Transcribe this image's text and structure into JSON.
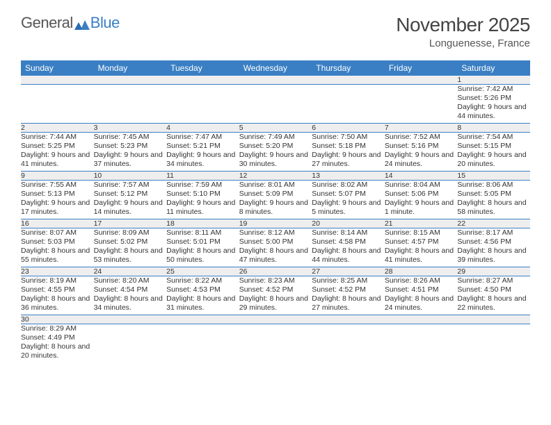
{
  "logo": {
    "general": "General",
    "blue": "Blue"
  },
  "title": "November 2025",
  "location": "Longuenesse, France",
  "colors": {
    "header_bg": "#3a7fc4",
    "day_bg": "#eeeeee",
    "text": "#333333"
  },
  "weekdays": [
    "Sunday",
    "Monday",
    "Tuesday",
    "Wednesday",
    "Thursday",
    "Friday",
    "Saturday"
  ],
  "weeks": [
    {
      "nums": [
        "",
        "",
        "",
        "",
        "",
        "",
        "1"
      ],
      "cells": [
        {
          "sunrise": "",
          "sunset": "",
          "daylight": ""
        },
        {
          "sunrise": "",
          "sunset": "",
          "daylight": ""
        },
        {
          "sunrise": "",
          "sunset": "",
          "daylight": ""
        },
        {
          "sunrise": "",
          "sunset": "",
          "daylight": ""
        },
        {
          "sunrise": "",
          "sunset": "",
          "daylight": ""
        },
        {
          "sunrise": "",
          "sunset": "",
          "daylight": ""
        },
        {
          "sunrise": "Sunrise: 7:42 AM",
          "sunset": "Sunset: 5:26 PM",
          "daylight": "Daylight: 9 hours and 44 minutes."
        }
      ]
    },
    {
      "nums": [
        "2",
        "3",
        "4",
        "5",
        "6",
        "7",
        "8"
      ],
      "cells": [
        {
          "sunrise": "Sunrise: 7:44 AM",
          "sunset": "Sunset: 5:25 PM",
          "daylight": "Daylight: 9 hours and 41 minutes."
        },
        {
          "sunrise": "Sunrise: 7:45 AM",
          "sunset": "Sunset: 5:23 PM",
          "daylight": "Daylight: 9 hours and 37 minutes."
        },
        {
          "sunrise": "Sunrise: 7:47 AM",
          "sunset": "Sunset: 5:21 PM",
          "daylight": "Daylight: 9 hours and 34 minutes."
        },
        {
          "sunrise": "Sunrise: 7:49 AM",
          "sunset": "Sunset: 5:20 PM",
          "daylight": "Daylight: 9 hours and 30 minutes."
        },
        {
          "sunrise": "Sunrise: 7:50 AM",
          "sunset": "Sunset: 5:18 PM",
          "daylight": "Daylight: 9 hours and 27 minutes."
        },
        {
          "sunrise": "Sunrise: 7:52 AM",
          "sunset": "Sunset: 5:16 PM",
          "daylight": "Daylight: 9 hours and 24 minutes."
        },
        {
          "sunrise": "Sunrise: 7:54 AM",
          "sunset": "Sunset: 5:15 PM",
          "daylight": "Daylight: 9 hours and 20 minutes."
        }
      ]
    },
    {
      "nums": [
        "9",
        "10",
        "11",
        "12",
        "13",
        "14",
        "15"
      ],
      "cells": [
        {
          "sunrise": "Sunrise: 7:55 AM",
          "sunset": "Sunset: 5:13 PM",
          "daylight": "Daylight: 9 hours and 17 minutes."
        },
        {
          "sunrise": "Sunrise: 7:57 AM",
          "sunset": "Sunset: 5:12 PM",
          "daylight": "Daylight: 9 hours and 14 minutes."
        },
        {
          "sunrise": "Sunrise: 7:59 AM",
          "sunset": "Sunset: 5:10 PM",
          "daylight": "Daylight: 9 hours and 11 minutes."
        },
        {
          "sunrise": "Sunrise: 8:01 AM",
          "sunset": "Sunset: 5:09 PM",
          "daylight": "Daylight: 9 hours and 8 minutes."
        },
        {
          "sunrise": "Sunrise: 8:02 AM",
          "sunset": "Sunset: 5:07 PM",
          "daylight": "Daylight: 9 hours and 5 minutes."
        },
        {
          "sunrise": "Sunrise: 8:04 AM",
          "sunset": "Sunset: 5:06 PM",
          "daylight": "Daylight: 9 hours and 1 minute."
        },
        {
          "sunrise": "Sunrise: 8:06 AM",
          "sunset": "Sunset: 5:05 PM",
          "daylight": "Daylight: 8 hours and 58 minutes."
        }
      ]
    },
    {
      "nums": [
        "16",
        "17",
        "18",
        "19",
        "20",
        "21",
        "22"
      ],
      "cells": [
        {
          "sunrise": "Sunrise: 8:07 AM",
          "sunset": "Sunset: 5:03 PM",
          "daylight": "Daylight: 8 hours and 55 minutes."
        },
        {
          "sunrise": "Sunrise: 8:09 AM",
          "sunset": "Sunset: 5:02 PM",
          "daylight": "Daylight: 8 hours and 53 minutes."
        },
        {
          "sunrise": "Sunrise: 8:11 AM",
          "sunset": "Sunset: 5:01 PM",
          "daylight": "Daylight: 8 hours and 50 minutes."
        },
        {
          "sunrise": "Sunrise: 8:12 AM",
          "sunset": "Sunset: 5:00 PM",
          "daylight": "Daylight: 8 hours and 47 minutes."
        },
        {
          "sunrise": "Sunrise: 8:14 AM",
          "sunset": "Sunset: 4:58 PM",
          "daylight": "Daylight: 8 hours and 44 minutes."
        },
        {
          "sunrise": "Sunrise: 8:15 AM",
          "sunset": "Sunset: 4:57 PM",
          "daylight": "Daylight: 8 hours and 41 minutes."
        },
        {
          "sunrise": "Sunrise: 8:17 AM",
          "sunset": "Sunset: 4:56 PM",
          "daylight": "Daylight: 8 hours and 39 minutes."
        }
      ]
    },
    {
      "nums": [
        "23",
        "24",
        "25",
        "26",
        "27",
        "28",
        "29"
      ],
      "cells": [
        {
          "sunrise": "Sunrise: 8:19 AM",
          "sunset": "Sunset: 4:55 PM",
          "daylight": "Daylight: 8 hours and 36 minutes."
        },
        {
          "sunrise": "Sunrise: 8:20 AM",
          "sunset": "Sunset: 4:54 PM",
          "daylight": "Daylight: 8 hours and 34 minutes."
        },
        {
          "sunrise": "Sunrise: 8:22 AM",
          "sunset": "Sunset: 4:53 PM",
          "daylight": "Daylight: 8 hours and 31 minutes."
        },
        {
          "sunrise": "Sunrise: 8:23 AM",
          "sunset": "Sunset: 4:52 PM",
          "daylight": "Daylight: 8 hours and 29 minutes."
        },
        {
          "sunrise": "Sunrise: 8:25 AM",
          "sunset": "Sunset: 4:52 PM",
          "daylight": "Daylight: 8 hours and 27 minutes."
        },
        {
          "sunrise": "Sunrise: 8:26 AM",
          "sunset": "Sunset: 4:51 PM",
          "daylight": "Daylight: 8 hours and 24 minutes."
        },
        {
          "sunrise": "Sunrise: 8:27 AM",
          "sunset": "Sunset: 4:50 PM",
          "daylight": "Daylight: 8 hours and 22 minutes."
        }
      ]
    },
    {
      "nums": [
        "30",
        "",
        "",
        "",
        "",
        "",
        ""
      ],
      "cells": [
        {
          "sunrise": "Sunrise: 8:29 AM",
          "sunset": "Sunset: 4:49 PM",
          "daylight": "Daylight: 8 hours and 20 minutes."
        },
        {
          "sunrise": "",
          "sunset": "",
          "daylight": ""
        },
        {
          "sunrise": "",
          "sunset": "",
          "daylight": ""
        },
        {
          "sunrise": "",
          "sunset": "",
          "daylight": ""
        },
        {
          "sunrise": "",
          "sunset": "",
          "daylight": ""
        },
        {
          "sunrise": "",
          "sunset": "",
          "daylight": ""
        },
        {
          "sunrise": "",
          "sunset": "",
          "daylight": ""
        }
      ]
    }
  ]
}
